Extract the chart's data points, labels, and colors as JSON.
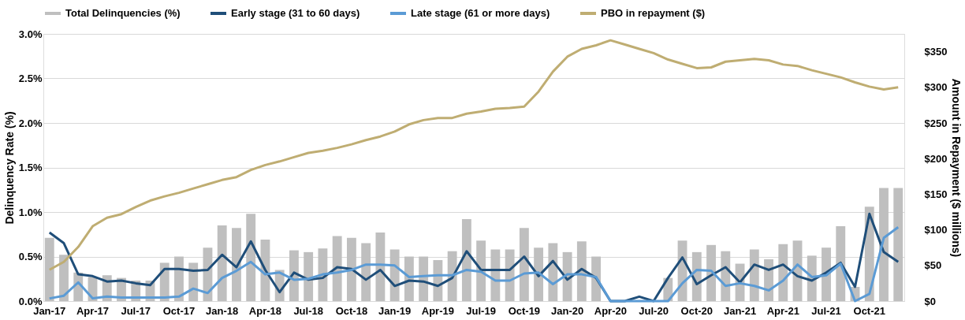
{
  "chart_data": {
    "type": "bar",
    "ylabel": "Delinquency Rate (%)",
    "y2label": "Amount in Repayment ($ millions)",
    "categories": [
      "Jan-17",
      null,
      null,
      "Apr-17",
      null,
      null,
      "Jul-17",
      null,
      null,
      "Oct-17",
      null,
      null,
      "Jan-18",
      null,
      null,
      "Apr-18",
      null,
      null,
      "Jul-18",
      null,
      null,
      "Oct-18",
      null,
      null,
      "Jan-19",
      null,
      null,
      "Apr-19",
      null,
      null,
      "Jul-19",
      null,
      null,
      "Oct-19",
      null,
      null,
      "Jan-20",
      null,
      null,
      "Apr-20",
      null,
      null,
      "Jul-20",
      null,
      null,
      "Oct-20",
      null,
      null,
      "Jan-21",
      null,
      null,
      "Apr-21",
      null,
      null,
      "Jul-21",
      null,
      null,
      "Oct-21",
      null,
      null
    ],
    "series": [
      {
        "name": "Total Delinquencies (%)",
        "color": "#bfbfbf",
        "values": [
          0.71,
          0.52,
          0.32,
          0.27,
          0.29,
          0.26,
          0.23,
          0.23,
          0.43,
          0.5,
          0.43,
          0.6,
          0.85,
          0.82,
          0.98,
          0.69,
          0.35,
          0.57,
          0.55,
          0.59,
          0.73,
          0.71,
          0.65,
          0.77,
          0.58,
          0.5,
          0.5,
          0.46,
          0.56,
          0.92,
          0.68,
          0.58,
          0.58,
          0.82,
          0.6,
          0.65,
          0.55,
          0.67,
          0.5,
          0,
          0,
          0,
          0,
          0.26,
          0.68,
          0.55,
          0.63,
          0.56,
          0.42,
          0.58,
          0.47,
          0.64,
          0.68,
          0.51,
          0.6,
          0.84,
          0.16,
          1.06,
          1.27,
          1.27
        ]
      },
      {
        "name": "Early stage (31 to 60 days)",
        "type": "line",
        "color": "#1f4e79",
        "values": [
          0.77,
          0.65,
          0.3,
          0.28,
          0.22,
          0.23,
          0.2,
          0.18,
          0.36,
          0.36,
          0.34,
          0.35,
          0.52,
          0.38,
          0.67,
          0.35,
          0.1,
          0.32,
          0.24,
          0.26,
          0.38,
          0.36,
          0.24,
          0.35,
          0.17,
          0.23,
          0.22,
          0.17,
          0.26,
          0.56,
          0.35,
          0.35,
          0.35,
          0.5,
          0.28,
          0.45,
          0.24,
          0.36,
          0.26,
          0,
          0,
          0.05,
          0,
          0.26,
          0.49,
          0.19,
          0.29,
          0.38,
          0.21,
          0.41,
          0.35,
          0.41,
          0.28,
          0.23,
          0.32,
          0.43,
          0.16,
          0.98,
          0.55,
          0.44
        ]
      },
      {
        "name": "Late stage (61 or more days)",
        "type": "line",
        "color": "#5b9bd5",
        "values": [
          0.03,
          0.06,
          0.21,
          0.03,
          0.05,
          0.04,
          0.04,
          0.04,
          0.04,
          0.05,
          0.14,
          0.09,
          0.26,
          0.34,
          0.44,
          0.3,
          0.32,
          0.24,
          0.25,
          0.3,
          0.32,
          0.35,
          0.41,
          0.41,
          0.4,
          0.27,
          0.28,
          0.29,
          0.29,
          0.35,
          0.33,
          0.23,
          0.23,
          0.31,
          0.32,
          0.19,
          0.3,
          0.3,
          0.27,
          0,
          0,
          0,
          0,
          0,
          0.2,
          0.35,
          0.34,
          0.17,
          0.2,
          0.17,
          0.12,
          0.23,
          0.41,
          0.27,
          0.29,
          0.42,
          0,
          0.08,
          0.71,
          0.83
        ]
      },
      {
        "name": "PBO in repayment ($)",
        "type": "line",
        "axis": "y2",
        "color": "#bfad72",
        "values": [
          44,
          55,
          76,
          105,
          117,
          122,
          132,
          141,
          147,
          152,
          158,
          164,
          170,
          174,
          184,
          191,
          196,
          202,
          208,
          211,
          215,
          220,
          226,
          231,
          238,
          248,
          254,
          257,
          257,
          263,
          266,
          270,
          271,
          273,
          294,
          322,
          343,
          354,
          359,
          366,
          360,
          354,
          348,
          339,
          333,
          327,
          328,
          336,
          338,
          340,
          338,
          332,
          330,
          324,
          319,
          314,
          307,
          301,
          297,
          300
        ]
      }
    ],
    "ylim": [
      0,
      3.0
    ],
    "yticks": [
      {
        "value": 0,
        "label": "0.0%"
      },
      {
        "value": 0.5,
        "label": "0.5%"
      },
      {
        "value": 1.0,
        "label": "1.0%"
      },
      {
        "value": 1.5,
        "label": "1.5%"
      },
      {
        "value": 2.0,
        "label": "2.0%"
      },
      {
        "value": 2.5,
        "label": "2.5%"
      },
      {
        "value": 3.0,
        "label": "3.0%"
      }
    ],
    "y2lim": [
      0,
      375
    ],
    "y2ticks": [
      {
        "value": 0,
        "label": "$0"
      },
      {
        "value": 50,
        "label": "$50"
      },
      {
        "value": 100,
        "label": "$100"
      },
      {
        "value": 150,
        "label": "$150"
      },
      {
        "value": 200,
        "label": "$200"
      },
      {
        "value": 250,
        "label": "$250"
      },
      {
        "value": 300,
        "label": "$300"
      },
      {
        "value": 350,
        "label": "$350"
      }
    ],
    "grid": "y",
    "legend": "top"
  }
}
